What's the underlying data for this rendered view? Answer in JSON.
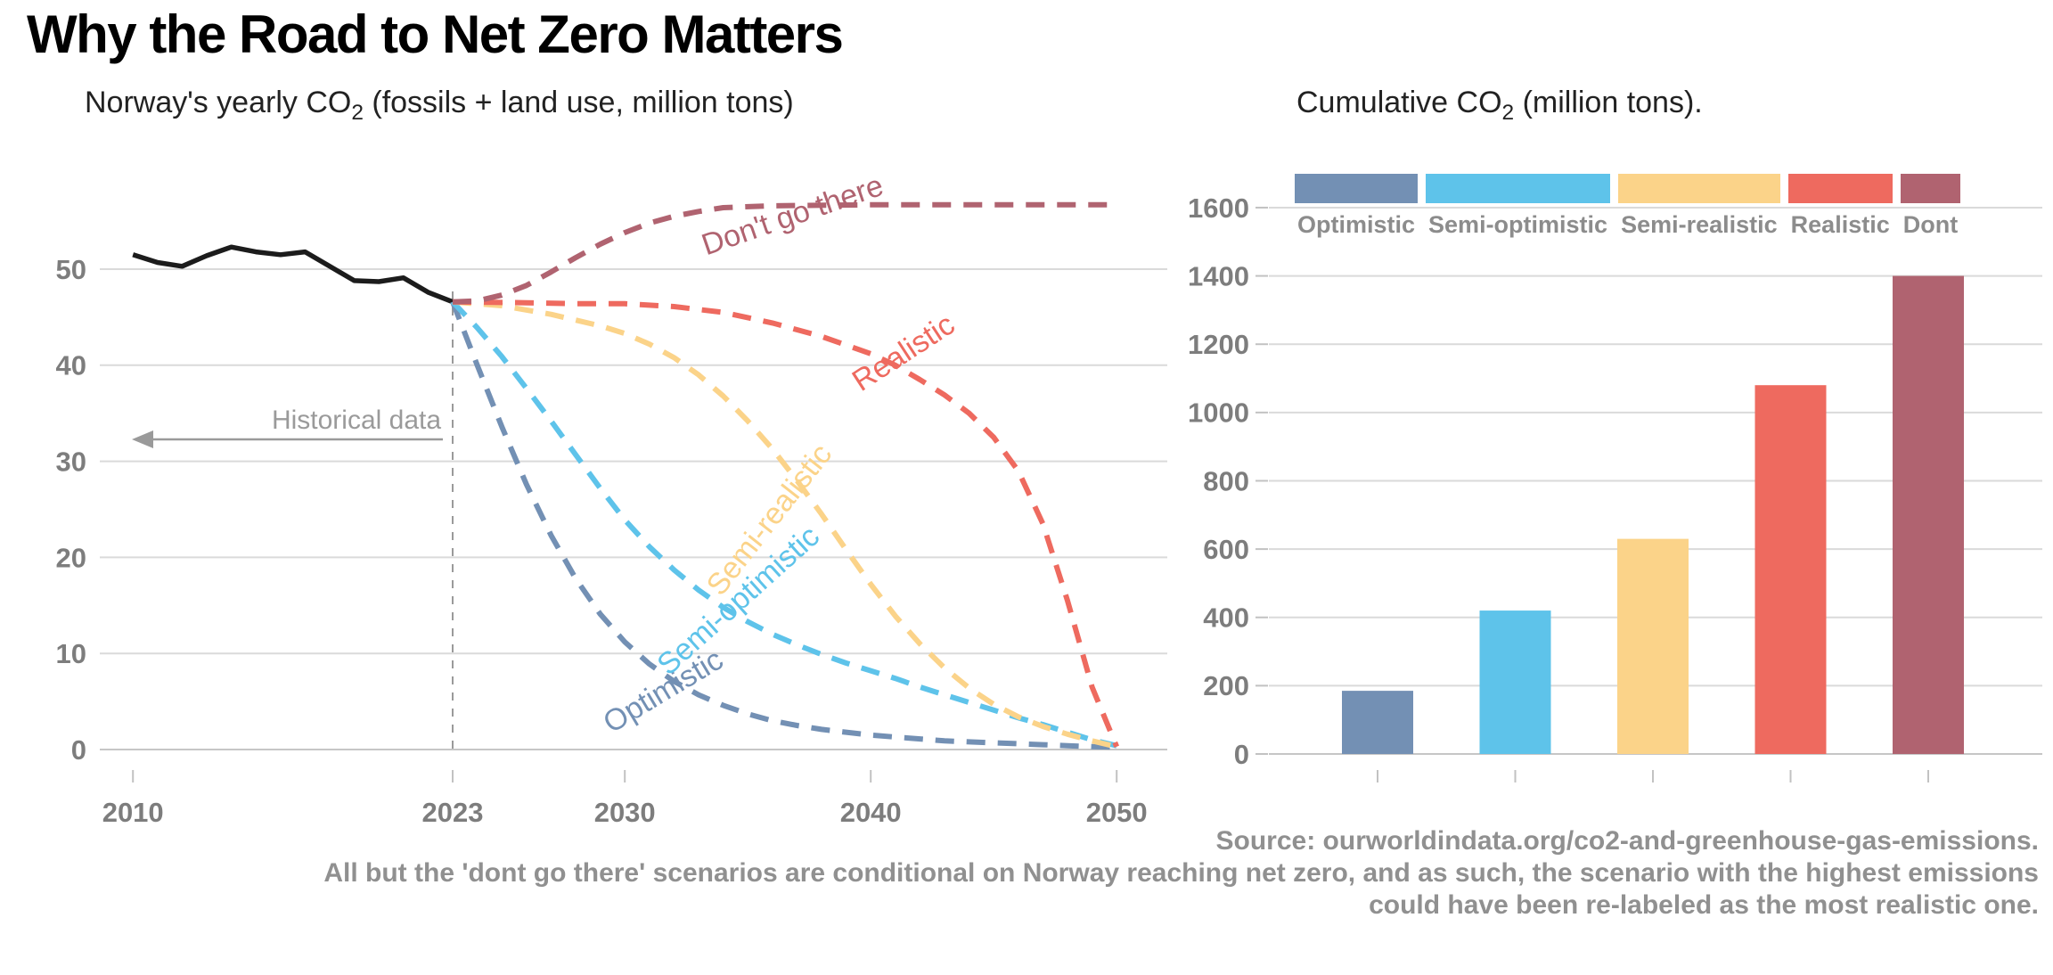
{
  "header": {
    "title": "Why the Road to Net Zero Matters"
  },
  "left_chart": {
    "title_pre": "Norway's yearly CO",
    "title_sub": "2",
    "title_post": " (fossils + land use, million tons)",
    "annotation_historical": "Historical data",
    "breakpoint_year": "2023"
  },
  "right_chart": {
    "title_pre": "Cumulative CO",
    "title_sub": "2",
    "title_post": " (million tons).",
    "legend": [
      {
        "label": "Optimistic",
        "color": "#7390b4"
      },
      {
        "label": "Semi-optimistic",
        "color": "#5ec3ea"
      },
      {
        "label": "Semi-realistic",
        "color": "#fbd389"
      },
      {
        "label": "Realistic",
        "color": "#ee6a5f"
      },
      {
        "label": "Dont",
        "color": "#b06370"
      }
    ]
  },
  "caption": {
    "lines": [
      "Source: ourworldindata.org/co2-and-greenhouse-gas-emissions.",
      "All but the 'dont go there' scenarios are conditional on Norway reaching net zero, and as such, the scenario with the highest emissions",
      "could have been re-labeled as the most realistic one."
    ]
  },
  "chart_data": [
    {
      "type": "line",
      "title": "Norway's yearly CO2 (fossils + land use, million tons)",
      "xlabel": "",
      "ylabel": "",
      "x_ticks": [
        2010,
        2023,
        2030,
        2040,
        2050
      ],
      "y_ticks": [
        0,
        10,
        20,
        30,
        40,
        50
      ],
      "xlim": [
        2008.6,
        2052
      ],
      "ylim": [
        0,
        59
      ],
      "grid": "horizontal",
      "breakpoint_year": 2023,
      "annotation": {
        "label": "Historical data",
        "value_level": 32.3
      },
      "series": [
        {
          "id": "historical",
          "label": "Historical data",
          "color": "#1c1c1c",
          "style": "solid",
          "points": [
            [
              2010,
              51.5
            ],
            [
              2011,
              50.7
            ],
            [
              2012,
              50.3
            ],
            [
              2013,
              51.4
            ],
            [
              2014,
              52.3
            ],
            [
              2015,
              51.8
            ],
            [
              2016,
              51.5
            ],
            [
              2017,
              51.8
            ],
            [
              2018,
              50.3
            ],
            [
              2019,
              48.8
            ],
            [
              2020,
              48.7
            ],
            [
              2021,
              49.1
            ],
            [
              2022,
              47.6
            ],
            [
              2023,
              46.6
            ]
          ]
        },
        {
          "id": "optimistic",
          "label": "Optimistic",
          "color": "#7390b4",
          "style": "dashed",
          "points": [
            [
              2023,
              46.6
            ],
            [
              2024,
              40.0
            ],
            [
              2025,
              33.6
            ],
            [
              2026,
              27.6
            ],
            [
              2027,
              22.3
            ],
            [
              2028,
              17.8
            ],
            [
              2029,
              14.1
            ],
            [
              2030,
              11.2
            ],
            [
              2031,
              8.9
            ],
            [
              2032,
              7.1
            ],
            [
              2033,
              5.7
            ],
            [
              2034,
              4.6
            ],
            [
              2035,
              3.7
            ],
            [
              2036,
              3.0
            ],
            [
              2037,
              2.5
            ],
            [
              2038,
              2.1
            ],
            [
              2039,
              1.8
            ],
            [
              2040,
              1.5
            ],
            [
              2041,
              1.3
            ],
            [
              2042,
              1.1
            ],
            [
              2043,
              0.9
            ],
            [
              2044,
              0.8
            ],
            [
              2045,
              0.7
            ],
            [
              2046,
              0.6
            ],
            [
              2047,
              0.5
            ],
            [
              2048,
              0.4
            ],
            [
              2049,
              0.3
            ],
            [
              2050,
              0.25
            ]
          ]
        },
        {
          "id": "semi_optimistic",
          "label": "Semi-optimistic",
          "color": "#5ec3ea",
          "style": "dashed",
          "points": [
            [
              2023,
              46.6
            ],
            [
              2024,
              43.9
            ],
            [
              2025,
              40.9
            ],
            [
              2026,
              37.6
            ],
            [
              2027,
              34.2
            ],
            [
              2028,
              30.7
            ],
            [
              2029,
              27.2
            ],
            [
              2030,
              23.9
            ],
            [
              2031,
              21.1
            ],
            [
              2032,
              18.7
            ],
            [
              2033,
              16.6
            ],
            [
              2034,
              14.8
            ],
            [
              2035,
              13.3
            ],
            [
              2036,
              12.0
            ],
            [
              2037,
              10.9
            ],
            [
              2038,
              9.9
            ],
            [
              2039,
              9.0
            ],
            [
              2040,
              8.2
            ],
            [
              2041,
              7.4
            ],
            [
              2042,
              6.5
            ],
            [
              2043,
              5.7
            ],
            [
              2044,
              4.9
            ],
            [
              2045,
              4.1
            ],
            [
              2046,
              3.3
            ],
            [
              2047,
              2.6
            ],
            [
              2048,
              1.8
            ],
            [
              2049,
              1.0
            ],
            [
              2050,
              0.4
            ]
          ]
        },
        {
          "id": "semi_realistic",
          "label": "Semi-realistic",
          "color": "#fbd389",
          "style": "dashed",
          "points": [
            [
              2023,
              46.6
            ],
            [
              2025,
              46.2
            ],
            [
              2027,
              45.3
            ],
            [
              2029,
              44.1
            ],
            [
              2030,
              43.3
            ],
            [
              2031,
              42.2
            ],
            [
              2032,
              40.8
            ],
            [
              2033,
              39.0
            ],
            [
              2034,
              36.8
            ],
            [
              2035,
              34.2
            ],
            [
              2036,
              31.3
            ],
            [
              2037,
              28.0
            ],
            [
              2038,
              24.5
            ],
            [
              2039,
              20.8
            ],
            [
              2040,
              17.2
            ],
            [
              2041,
              13.9
            ],
            [
              2042,
              11.0
            ],
            [
              2043,
              8.5
            ],
            [
              2044,
              6.4
            ],
            [
              2045,
              4.7
            ],
            [
              2046,
              3.4
            ],
            [
              2047,
              2.4
            ],
            [
              2048,
              1.6
            ],
            [
              2049,
              0.9
            ],
            [
              2050,
              0.3
            ]
          ]
        },
        {
          "id": "realistic",
          "label": "Realistic",
          "color": "#ee6a5f",
          "style": "dashed",
          "points": [
            [
              2023,
              46.6
            ],
            [
              2026,
              46.5
            ],
            [
              2028,
              46.4
            ],
            [
              2030,
              46.4
            ],
            [
              2032,
              46.1
            ],
            [
              2034,
              45.5
            ],
            [
              2036,
              44.4
            ],
            [
              2038,
              43.0
            ],
            [
              2040,
              41.2
            ],
            [
              2041,
              40.0
            ],
            [
              2042,
              38.5
            ],
            [
              2043,
              36.9
            ],
            [
              2044,
              35.0
            ],
            [
              2045,
              32.5
            ],
            [
              2046,
              29.0
            ],
            [
              2047,
              23.5
            ],
            [
              2048,
              15.5
            ],
            [
              2049,
              6.5
            ],
            [
              2050,
              0.3
            ]
          ]
        },
        {
          "id": "dont",
          "label": "Don't go there",
          "color": "#b06370",
          "style": "dashed",
          "points": [
            [
              2023,
              46.6
            ],
            [
              2024,
              46.7
            ],
            [
              2025,
              47.3
            ],
            [
              2026,
              48.3
            ],
            [
              2027,
              49.7
            ],
            [
              2028,
              51.2
            ],
            [
              2029,
              52.6
            ],
            [
              2030,
              53.8
            ],
            [
              2031,
              54.8
            ],
            [
              2032,
              55.5
            ],
            [
              2033,
              56.0
            ],
            [
              2034,
              56.4
            ],
            [
              2036,
              56.6
            ],
            [
              2040,
              56.7
            ],
            [
              2045,
              56.7
            ],
            [
              2050,
              56.7
            ]
          ]
        }
      ]
    },
    {
      "type": "bar",
      "title": "Cumulative CO2 (million tons).",
      "categories": [
        "Optimistic",
        "Semi-optimistic",
        "Semi-realistic",
        "Realistic",
        "Dont"
      ],
      "values": [
        185,
        420,
        630,
        1080,
        1400
      ],
      "colors": [
        "#7390b4",
        "#5ec3ea",
        "#fbd389",
        "#ee6a5f",
        "#b06370"
      ],
      "y_ticks": [
        0,
        200,
        400,
        600,
        800,
        1000,
        1200,
        1400,
        1600
      ],
      "ylim": [
        0,
        1600
      ],
      "grid": "horizontal",
      "legend_position": "top"
    }
  ]
}
